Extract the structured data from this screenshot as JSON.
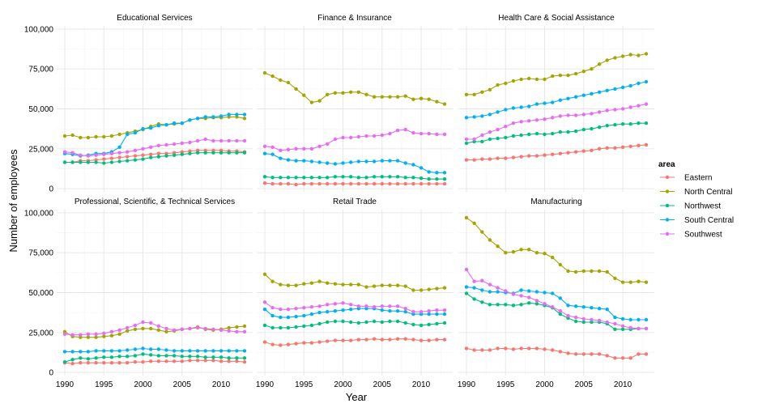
{
  "chart_data": {
    "type": "line",
    "xlabel": "Year",
    "ylabel": "Number of employees",
    "xlim": [
      1990,
      2013
    ],
    "ylim": [
      0,
      100000
    ],
    "x_ticks": [
      1990,
      1995,
      2000,
      2005,
      2010
    ],
    "x_tick_labels": [
      "1990",
      "1995",
      "2000",
      "2005",
      "2010"
    ],
    "y_ticks": [
      0,
      25000,
      50000,
      75000,
      100000
    ],
    "y_tick_labels": [
      "0",
      "25,000",
      "50,000",
      "75,000",
      "100,000"
    ],
    "grid": true,
    "legend": {
      "title": "area",
      "placement": "right",
      "entries": [
        "Eastern",
        "North Central",
        "Northwest",
        "South Central",
        "Southwest"
      ]
    },
    "colors": {
      "Eastern": "#F8766D",
      "North Central": "#A3A500",
      "Northwest": "#00BF7D",
      "South Central": "#00B0F6",
      "Southwest": "#E76BF3"
    },
    "x": [
      1990,
      1991,
      1992,
      1993,
      1994,
      1995,
      1996,
      1997,
      1998,
      1999,
      2000,
      2001,
      2002,
      2003,
      2004,
      2005,
      2006,
      2007,
      2008,
      2009,
      2010,
      2011,
      2012,
      2013
    ],
    "panels": [
      {
        "title": "Educational Services",
        "series": [
          {
            "name": "Eastern",
            "values": [
              16500,
              16500,
              17500,
              17500,
              18000,
              18500,
              19000,
              19500,
              20000,
              20500,
              21000,
              21500,
              22000,
              22000,
              22500,
              23000,
              23500,
              24000,
              24000,
              24000,
              24000,
              23500,
              23500,
              23000
            ]
          },
          {
            "name": "North Central",
            "values": [
              33000,
              33500,
              32000,
              32000,
              32500,
              32500,
              33000,
              34000,
              35000,
              36000,
              37000,
              39000,
              40500,
              40000,
              40500,
              41000,
              43000,
              44000,
              44000,
              44500,
              44500,
              45000,
              45000,
              44000
            ]
          },
          {
            "name": "Northwest",
            "values": [
              16500,
              16500,
              16500,
              16500,
              16500,
              16000,
              16500,
              17000,
              17500,
              18000,
              18500,
              19500,
              20000,
              20500,
              21000,
              21500,
              22000,
              22500,
              22500,
              22500,
              22500,
              22500,
              22500,
              22500
            ]
          },
          {
            "name": "South Central",
            "values": [
              22000,
              21500,
              20500,
              21000,
              22000,
              22000,
              23000,
              26000,
              34000,
              35000,
              37500,
              38000,
              39500,
              40000,
              41000,
              41000,
              43000,
              44000,
              45000,
              45000,
              45500,
              46500,
              46500,
              46500
            ]
          },
          {
            "name": "Southwest",
            "values": [
              23000,
              22500,
              21000,
              20500,
              21000,
              21500,
              22000,
              22500,
              23000,
              24000,
              25000,
              26000,
              27000,
              27500,
              28000,
              28500,
              29000,
              30000,
              31000,
              30000,
              30000,
              30000,
              30000,
              30000
            ]
          }
        ]
      },
      {
        "title": "Finance & Insurance",
        "series": [
          {
            "name": "Eastern",
            "values": [
              3500,
              3000,
              3000,
              3000,
              2500,
              3000,
              3000,
              3000,
              3000,
              3000,
              3000,
              3000,
              3000,
              3000,
              3000,
              3000,
              3000,
              3000,
              3000,
              3000,
              3000,
              3000,
              3000,
              3000
            ]
          },
          {
            "name": "North Central",
            "values": [
              72500,
              70500,
              68000,
              66500,
              62500,
              58500,
              54000,
              55000,
              59000,
              60000,
              60000,
              60500,
              60500,
              59000,
              57500,
              57500,
              57500,
              57500,
              58000,
              56000,
              56500,
              56000,
              54500,
              53000
            ]
          },
          {
            "name": "Northwest",
            "values": [
              7500,
              7000,
              7000,
              7000,
              7000,
              7000,
              7000,
              7000,
              7000,
              7500,
              7500,
              7500,
              7000,
              7000,
              7500,
              7500,
              7500,
              7500,
              7000,
              7000,
              6500,
              6000,
              6000,
              6000
            ]
          },
          {
            "name": "South Central",
            "values": [
              22000,
              21500,
              19000,
              18000,
              17500,
              17500,
              17000,
              16500,
              16000,
              15500,
              16000,
              16500,
              17000,
              17000,
              17000,
              17500,
              17500,
              17500,
              16000,
              15000,
              13000,
              10500,
              10000,
              10000
            ]
          },
          {
            "name": "Southwest",
            "values": [
              26500,
              26000,
              24000,
              24500,
              25000,
              25000,
              25000,
              26500,
              28000,
              31000,
              32000,
              32000,
              32500,
              33000,
              33000,
              33500,
              34500,
              36500,
              37000,
              35000,
              34500,
              34500,
              34000,
              34000
            ]
          }
        ]
      },
      {
        "title": "Health Care & Social Assistance",
        "series": [
          {
            "name": "Eastern",
            "values": [
              18000,
              18000,
              18500,
              18500,
              19000,
              19000,
              19500,
              20000,
              20500,
              20500,
              21000,
              21500,
              22000,
              22500,
              23000,
              23500,
              24000,
              25000,
              25500,
              25500,
              26000,
              26500,
              27000,
              27500
            ]
          },
          {
            "name": "North Central",
            "values": [
              59000,
              59000,
              60500,
              62000,
              65000,
              66000,
              67500,
              68500,
              69000,
              68500,
              68500,
              70500,
              71000,
              71000,
              72000,
              73500,
              75000,
              78000,
              80500,
              82000,
              83000,
              84000,
              83500,
              84500
            ]
          },
          {
            "name": "Northwest",
            "values": [
              28500,
              29500,
              29500,
              31000,
              31500,
              32000,
              33000,
              33500,
              34000,
              34500,
              34000,
              34500,
              35500,
              35500,
              36000,
              37000,
              37500,
              38500,
              39500,
              40000,
              40500,
              40500,
              41000,
              41000
            ]
          },
          {
            "name": "South Central",
            "values": [
              44500,
              45000,
              45500,
              46500,
              48000,
              49500,
              50500,
              51000,
              51500,
              53000,
              53500,
              54000,
              55500,
              56500,
              57500,
              58500,
              59500,
              60500,
              61500,
              62500,
              63500,
              64500,
              66000,
              67000
            ]
          },
          {
            "name": "Southwest",
            "values": [
              31000,
              31000,
              33500,
              35500,
              37000,
              39000,
              41000,
              42000,
              42500,
              43000,
              43500,
              44500,
              45500,
              46000,
              46000,
              46500,
              47000,
              48000,
              49000,
              49500,
              50000,
              51000,
              52000,
              53000
            ]
          }
        ]
      },
      {
        "title": "Professional, Scientific, & Technical Services",
        "series": [
          {
            "name": "Eastern",
            "values": [
              6000,
              5500,
              6000,
              6000,
              6000,
              6000,
              6000,
              6000,
              6000,
              6500,
              6500,
              7000,
              7000,
              7000,
              7000,
              7000,
              7500,
              7500,
              7500,
              7500,
              7000,
              7000,
              7000,
              6500
            ]
          },
          {
            "name": "North Central",
            "values": [
              25500,
              22500,
              22000,
              22000,
              22000,
              22500,
              23000,
              24000,
              26000,
              27000,
              27500,
              27500,
              26500,
              25500,
              26000,
              27000,
              27500,
              28500,
              27000,
              26500,
              27000,
              28000,
              28500,
              29000
            ]
          },
          {
            "name": "Northwest",
            "values": [
              6500,
              8000,
              9000,
              8500,
              9000,
              9500,
              9500,
              10000,
              10000,
              10500,
              11500,
              11000,
              10500,
              10500,
              10500,
              10000,
              10000,
              10000,
              9500,
              9500,
              9500,
              9000,
              9000,
              9000
            ]
          },
          {
            "name": "South Central",
            "values": [
              13000,
              13000,
              13000,
              13000,
              13500,
              13500,
              13500,
              13500,
              14000,
              14500,
              15000,
              14500,
              14500,
              14000,
              13500,
              13500,
              13500,
              13500,
              13500,
              13500,
              13500,
              13500,
              13500,
              13500
            ]
          },
          {
            "name": "Southwest",
            "values": [
              24000,
              23500,
              23500,
              24000,
              24000,
              24500,
              25500,
              26500,
              28000,
              29500,
              31500,
              31000,
              29000,
              27500,
              26500,
              27000,
              27500,
              28000,
              27500,
              27000,
              26500,
              26000,
              25500,
              25500
            ]
          }
        ]
      },
      {
        "title": "Retail Trade",
        "series": [
          {
            "name": "Eastern",
            "values": [
              19000,
              17500,
              17000,
              17500,
              18000,
              18500,
              18500,
              19000,
              19500,
              20000,
              20000,
              20000,
              20500,
              20500,
              21000,
              20500,
              20500,
              21000,
              21000,
              20500,
              20000,
              20000,
              20500,
              20500
            ]
          },
          {
            "name": "North Central",
            "values": [
              61500,
              57000,
              55000,
              54500,
              54500,
              55500,
              56000,
              57000,
              56000,
              55500,
              55000,
              55000,
              55000,
              53500,
              54000,
              54500,
              54500,
              54500,
              54000,
              51500,
              51500,
              52000,
              52500,
              53000
            ]
          },
          {
            "name": "Northwest",
            "values": [
              29500,
              28000,
              28000,
              28000,
              28500,
              29000,
              29500,
              30500,
              31500,
              32000,
              32000,
              31500,
              31000,
              31500,
              32000,
              31500,
              32000,
              32000,
              31000,
              30000,
              29500,
              30000,
              30500,
              31000
            ]
          },
          {
            "name": "South Central",
            "values": [
              39500,
              35500,
              34500,
              34500,
              35000,
              35500,
              36500,
              37500,
              38000,
              38500,
              39000,
              39500,
              40000,
              40000,
              40000,
              39000,
              38500,
              38500,
              38000,
              36500,
              36500,
              36500,
              36500,
              36500
            ]
          },
          {
            "name": "Southwest",
            "values": [
              44000,
              40500,
              39500,
              39500,
              40000,
              40500,
              41000,
              41500,
              42500,
              43000,
              43500,
              42500,
              41500,
              41500,
              41000,
              41500,
              41500,
              41500,
              40000,
              38000,
              38000,
              38500,
              39000,
              39000
            ]
          }
        ]
      },
      {
        "title": "Manufacturing",
        "series": [
          {
            "name": "Eastern",
            "values": [
              15000,
              14000,
              14000,
              14000,
              15000,
              15000,
              14500,
              15000,
              15000,
              15000,
              14500,
              14000,
              13000,
              12000,
              11500,
              11500,
              11500,
              11500,
              10500,
              9000,
              9000,
              9000,
              11500,
              11500
            ]
          },
          {
            "name": "North Central",
            "values": [
              97000,
              93500,
              88000,
              83000,
              79000,
              75000,
              75500,
              77000,
              77000,
              75000,
              74500,
              72000,
              67500,
              63500,
              63000,
              63500,
              63500,
              63500,
              63000,
              59000,
              56500,
              56500,
              57000,
              56500
            ]
          },
          {
            "name": "Northwest",
            "values": [
              49500,
              46000,
              44000,
              42500,
              42500,
              42500,
              42000,
              42500,
              43500,
              43000,
              42000,
              40500,
              36500,
              34000,
              32000,
              31500,
              31500,
              31500,
              30500,
              27000,
              27000,
              27000,
              27500,
              27500
            ]
          },
          {
            "name": "South Central",
            "values": [
              53500,
              53000,
              51500,
              50500,
              50500,
              50000,
              49500,
              51500,
              51000,
              50500,
              50000,
              49500,
              46500,
              42000,
              41500,
              41000,
              40500,
              40000,
              39500,
              34500,
              33500,
              33000,
              33000,
              33000
            ]
          },
          {
            "name": "Southwest",
            "values": [
              64500,
              57000,
              57500,
              55000,
              53000,
              51000,
              49000,
              48000,
              47000,
              45000,
              43000,
              41000,
              38500,
              35500,
              34500,
              33500,
              33000,
              32500,
              31500,
              30500,
              29000,
              28000,
              27500,
              27500
            ]
          }
        ]
      }
    ]
  }
}
